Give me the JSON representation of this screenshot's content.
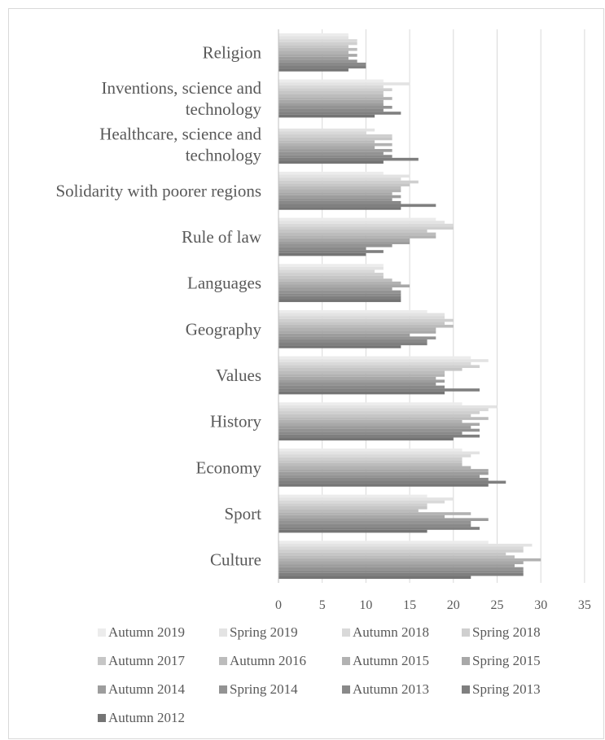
{
  "chart_data": {
    "type": "bar",
    "orientation": "horizontal",
    "xlim": [
      0,
      35
    ],
    "xticks": [
      0,
      5,
      10,
      15,
      20,
      25,
      30,
      35
    ],
    "grid": true,
    "legend_position": "bottom",
    "categories": [
      "Religion",
      "Inventions, science and technology",
      "Healthcare, science and technology",
      "Solidarity with poorer regions",
      "Rule of law",
      "Languages",
      "Geography",
      "Values",
      "History",
      "Economy",
      "Sport",
      "Culture"
    ],
    "category_lines": [
      [
        "Religion"
      ],
      [
        "Inventions, science and",
        "technology"
      ],
      [
        "Healthcare, science and",
        "technology"
      ],
      [
        "Solidarity with poorer regions"
      ],
      [
        "Rule of law"
      ],
      [
        "Languages"
      ],
      [
        "Geography"
      ],
      [
        "Values"
      ],
      [
        "History"
      ],
      [
        "Economy"
      ],
      [
        "Sport"
      ],
      [
        "Culture"
      ]
    ],
    "series": [
      {
        "name": "Autumn 2019",
        "color": "#ececec",
        "values": [
          8,
          12,
          null,
          12,
          18,
          12,
          17,
          22,
          21,
          21,
          17,
          24
        ]
      },
      {
        "name": "Spring 2019",
        "color": "#e3e3e3",
        "values": [
          8,
          15,
          11,
          15,
          19,
          12,
          19,
          24,
          25,
          23,
          20,
          29
        ]
      },
      {
        "name": "Autumn 2018",
        "color": "#d9d9d9",
        "values": [
          9,
          12,
          10,
          14,
          20,
          11,
          19,
          22,
          24,
          22,
          19,
          28
        ]
      },
      {
        "name": "Spring 2018",
        "color": "#cfcfcf",
        "values": [
          9,
          13,
          13,
          16,
          20,
          12,
          20,
          23,
          23,
          21,
          17,
          28
        ]
      },
      {
        "name": "Autumn 2017",
        "color": "#c6c6c6",
        "values": [
          8,
          12,
          13,
          15,
          17,
          12,
          19,
          21,
          22,
          21,
          17,
          26
        ]
      },
      {
        "name": "Autumn 2016",
        "color": "#bcbcbc",
        "values": [
          9,
          12,
          11,
          14,
          18,
          13,
          20,
          19,
          24,
          21,
          16,
          27
        ]
      },
      {
        "name": "Autumn 2015",
        "color": "#b2b2b2",
        "values": [
          8,
          13,
          13,
          14,
          18,
          14,
          18,
          19,
          21,
          22,
          22,
          30
        ]
      },
      {
        "name": "Spring 2015",
        "color": "#a8a8a8",
        "values": [
          9,
          12,
          11,
          13,
          15,
          15,
          18,
          18,
          23,
          24,
          19,
          28
        ]
      },
      {
        "name": "Autumn 2014",
        "color": "#9d9d9d",
        "values": [
          8,
          12,
          13,
          14,
          15,
          13,
          15,
          19,
          22,
          24,
          24,
          27
        ]
      },
      {
        "name": "Spring 2014",
        "color": "#939393",
        "values": [
          9,
          13,
          12,
          13,
          13,
          14,
          18,
          18,
          23,
          23,
          22,
          28
        ]
      },
      {
        "name": "Autumn 2013",
        "color": "#898989",
        "values": [
          10,
          12,
          13,
          14,
          10,
          14,
          17,
          19,
          21,
          24,
          22,
          28
        ]
      },
      {
        "name": "Spring 2013",
        "color": "#7f7f7f",
        "values": [
          10,
          14,
          16,
          18,
          12,
          14,
          17,
          23,
          23,
          26,
          23,
          28
        ]
      },
      {
        "name": "Autumn 2012",
        "color": "#747474",
        "values": [
          8,
          11,
          12,
          14,
          10,
          14,
          14,
          19,
          20,
          24,
          17,
          22
        ]
      }
    ]
  }
}
